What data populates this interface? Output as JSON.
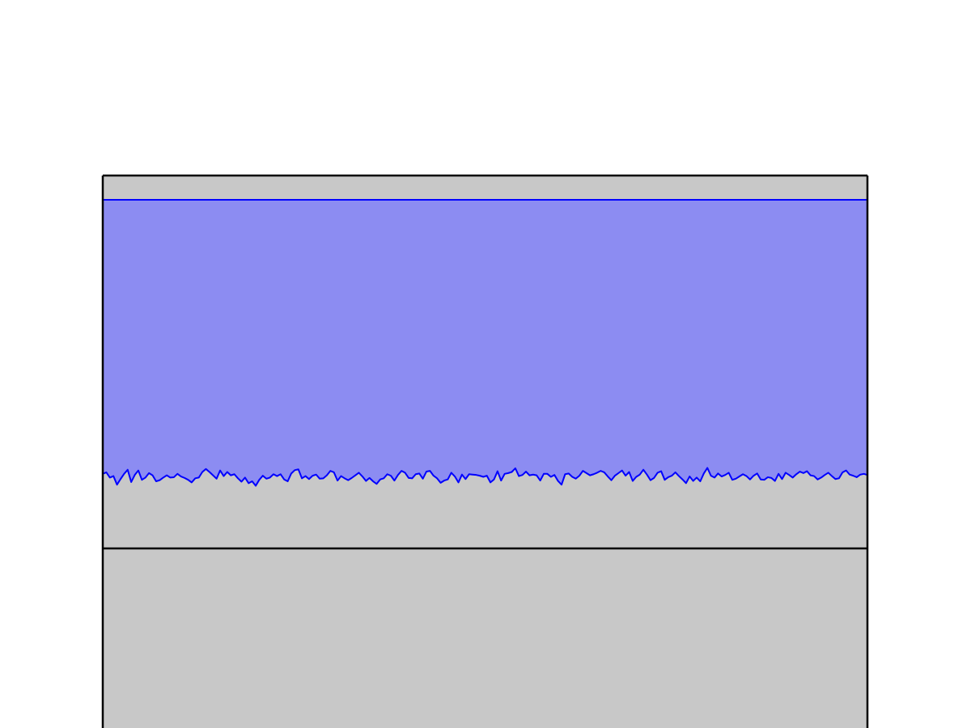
{
  "chart_data": {
    "type": "area",
    "title": "",
    "xlabel": "",
    "ylabel": "",
    "grid": false,
    "legend": "none",
    "xlim": [
      0,
      940
    ],
    "ylim": [
      0,
      1
    ],
    "band": {
      "name": "",
      "upper": 0.935,
      "lower_mean": 0.2
    },
    "lower": [
      0.2,
      0.204,
      0.19,
      0.194,
      0.171,
      0.186,
      0.2,
      0.211,
      0.178,
      0.197,
      0.209,
      0.184,
      0.19,
      0.202,
      0.196,
      0.18,
      0.183,
      0.19,
      0.196,
      0.19,
      0.191,
      0.2,
      0.193,
      0.189,
      0.184,
      0.177,
      0.188,
      0.19,
      0.205,
      0.213,
      0.205,
      0.196,
      0.187,
      0.209,
      0.194,
      0.205,
      0.196,
      0.199,
      0.188,
      0.179,
      0.19,
      0.175,
      0.18,
      0.168,
      0.184,
      0.195,
      0.187,
      0.19,
      0.199,
      0.194,
      0.199,
      0.185,
      0.18,
      0.201,
      0.21,
      0.212,
      0.188,
      0.194,
      0.186,
      0.195,
      0.198,
      0.187,
      0.188,
      0.196,
      0.208,
      0.204,
      0.182,
      0.194,
      0.188,
      0.183,
      0.189,
      0.196,
      0.203,
      0.193,
      0.181,
      0.189,
      0.18,
      0.173,
      0.185,
      0.188,
      0.199,
      0.195,
      0.182,
      0.197,
      0.208,
      0.203,
      0.189,
      0.188,
      0.199,
      0.201,
      0.187,
      0.206,
      0.208,
      0.195,
      0.188,
      0.176,
      0.182,
      0.185,
      0.203,
      0.193,
      0.177,
      0.198,
      0.186,
      0.199,
      0.198,
      0.197,
      0.195,
      0.192,
      0.195,
      0.177,
      0.185,
      0.207,
      0.182,
      0.2,
      0.202,
      0.205,
      0.215,
      0.194,
      0.197,
      0.206,
      0.196,
      0.198,
      0.196,
      0.182,
      0.2,
      0.2,
      0.192,
      0.197,
      0.181,
      0.171,
      0.199,
      0.201,
      0.192,
      0.187,
      0.195,
      0.208,
      0.202,
      0.196,
      0.199,
      0.203,
      0.208,
      0.204,
      0.193,
      0.183,
      0.195,
      0.202,
      0.209,
      0.195,
      0.205,
      0.181,
      0.192,
      0.198,
      0.211,
      0.198,
      0.183,
      0.189,
      0.203,
      0.207,
      0.184,
      0.191,
      0.195,
      0.204,
      0.194,
      0.185,
      0.175,
      0.193,
      0.181,
      0.19,
      0.18,
      0.201,
      0.216,
      0.195,
      0.19,
      0.201,
      0.193,
      0.197,
      0.203,
      0.184,
      0.187,
      0.193,
      0.199,
      0.194,
      0.185,
      0.195,
      0.201,
      0.185,
      0.184,
      0.191,
      0.189,
      0.181,
      0.2,
      0.186,
      0.203,
      0.197,
      0.19,
      0.199,
      0.206,
      0.202,
      0.207,
      0.196,
      0.194,
      0.185,
      0.19,
      0.197,
      0.203,
      0.194,
      0.186,
      0.188,
      0.204,
      0.209,
      0.198,
      0.195,
      0.191,
      0.198,
      0.2,
      0.197
    ]
  }
}
